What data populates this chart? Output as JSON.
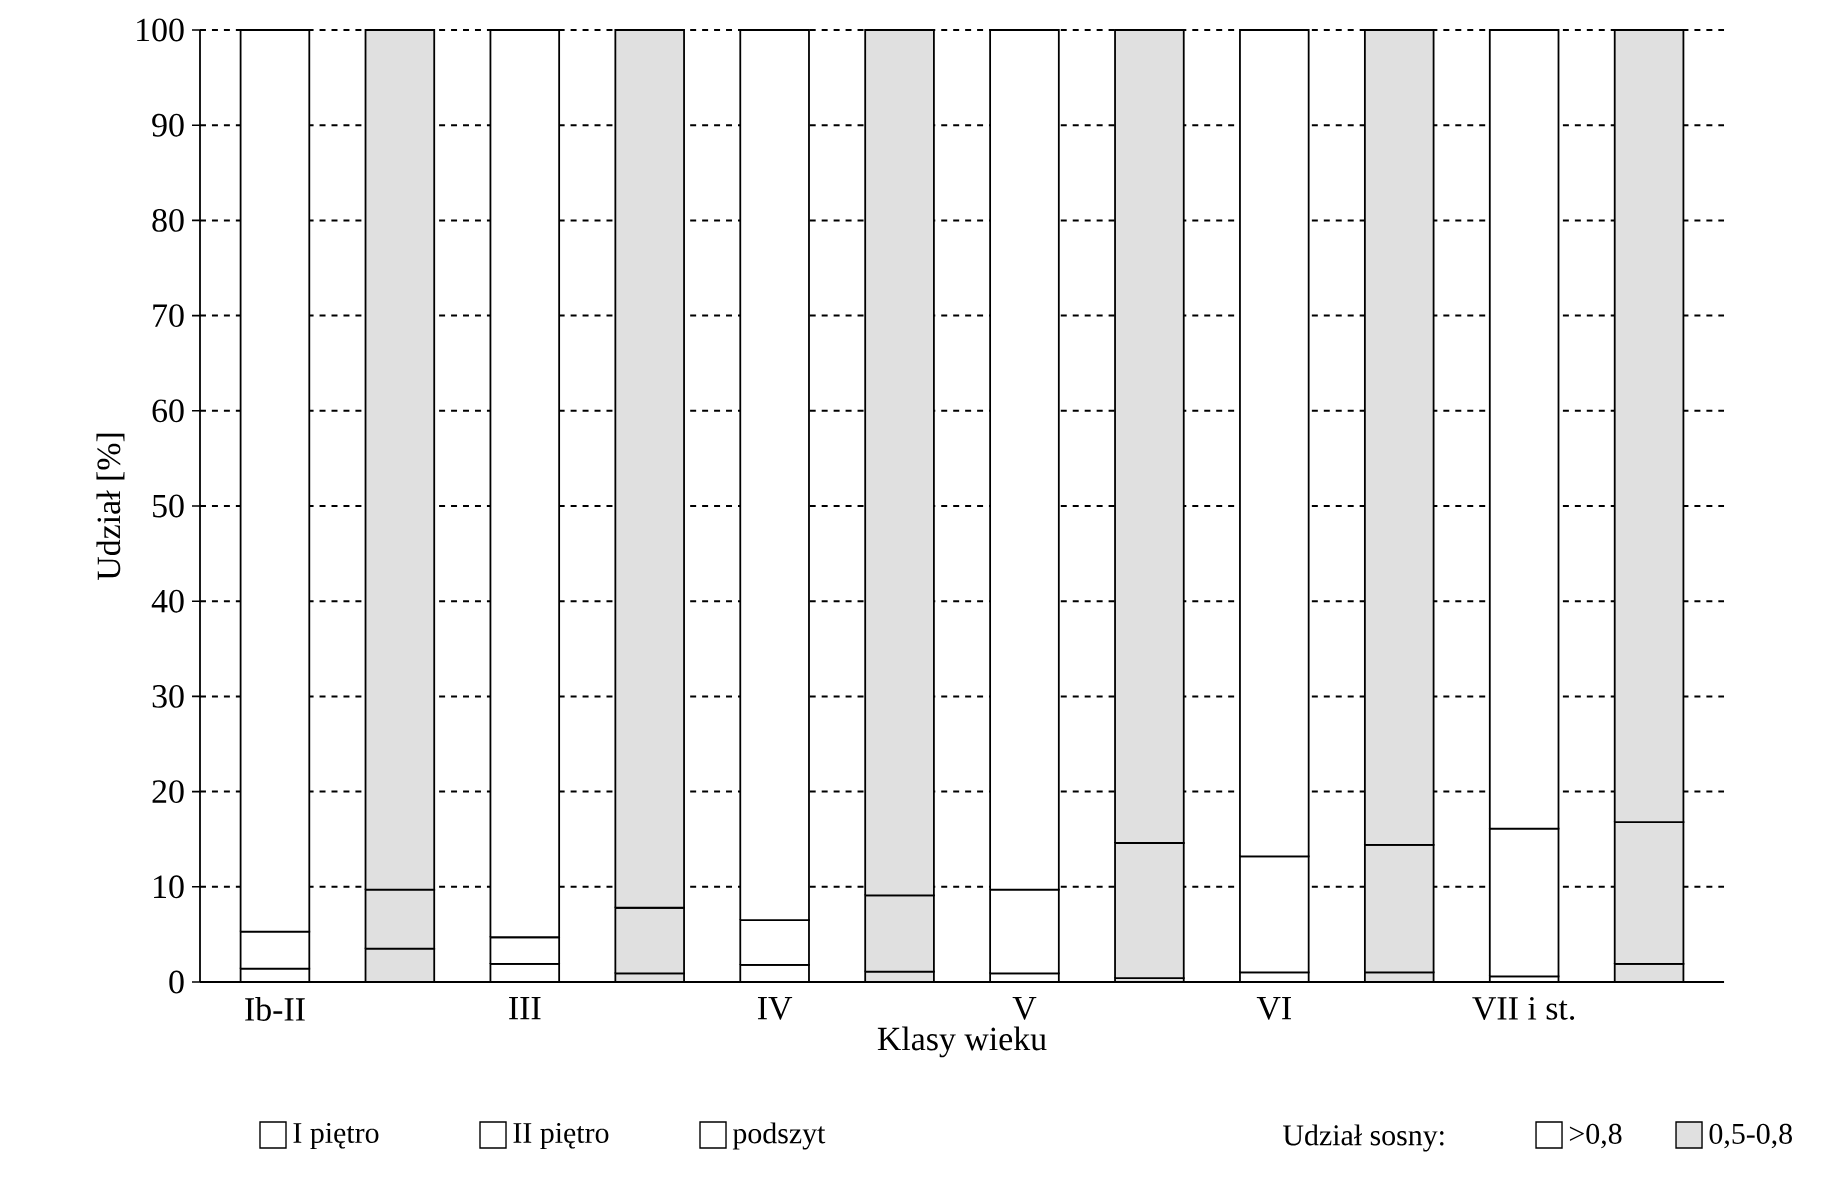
{
  "chart_data": {
    "type": "bar",
    "stacked": true,
    "xlabel": "Klasy wieku",
    "ylabel": "Udział [%]",
    "categories": [
      "Ib-II",
      null,
      "III",
      null,
      "IV",
      null,
      "V",
      null,
      "VI",
      null,
      "VII i st.",
      null
    ],
    "ylim": [
      0,
      100
    ],
    "yticks": [
      0,
      10,
      20,
      30,
      40,
      50,
      60,
      70,
      80,
      90,
      100
    ],
    "grid": "y",
    "legend": "bottom",
    "legend_title": "Udział sosny:",
    "annotations": [
      ">0,8",
      "0,5-0,8"
    ],
    "series": [
      {
        "name": "podszyt",
        "color": "#ffffff",
        "values": [
          1.4,
          null,
          1.9,
          null,
          1.8,
          null,
          0.9,
          null,
          1.0,
          null,
          0.6,
          null
        ]
      },
      {
        "name": "II piętro",
        "color": "#ffffff",
        "values": [
          3.9,
          null,
          2.8,
          null,
          4.7,
          null,
          8.8,
          null,
          12.2,
          null,
          15.5,
          null
        ]
      },
      {
        "name": "I piętro",
        "color": "#ffffff",
        "values": [
          94.7,
          null,
          95.3,
          null,
          93.5,
          null,
          90.3,
          null,
          86.8,
          null,
          83.9,
          null
        ]
      },
      {
        "color": "#e0e0e0",
        "values": [
          null,
          3.5,
          null,
          0.9,
          null,
          1.1,
          null,
          0.4,
          null,
          1.0,
          null,
          1.9
        ]
      },
      {
        "color": "#e0e0e0",
        "values": [
          null,
          6.2,
          null,
          6.9,
          null,
          8.0,
          null,
          14.2,
          null,
          13.4,
          null,
          14.9
        ]
      },
      {
        "color": "#e0e0e0",
        "values": [
          null,
          90.3,
          null,
          92.2,
          null,
          90.9,
          null,
          85.4,
          null,
          85.6,
          null,
          83.2
        ]
      }
    ]
  }
}
